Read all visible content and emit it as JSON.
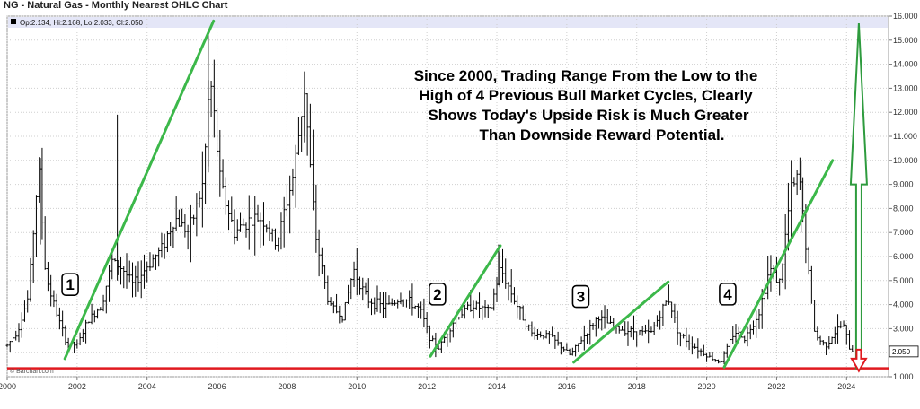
{
  "title": "NG - Natural Gas - Monthly Nearest OHLC Chart",
  "ohlc_readout": "Op:2.134, Hi:2.168, Lo:2.033, Cl:2.050",
  "watermark": "© Barchart.com",
  "last_price_label": "2.050",
  "annotation_lines": [
    "Since 2000, Trading Range From the Low to the",
    "High of 4 Previous Bull Market Cycles, Clearly",
    "Shows Today's Upside Risk is Much Greater",
    "Than Downside Reward Potential."
  ],
  "colors": {
    "trend": "#3cb84a",
    "support": "#e0191f",
    "bar": "#000000",
    "header_band": "#e4e6f7",
    "arrow_up": "#2e9b3e",
    "arrow_down": "#e0191f"
  },
  "chart_data": {
    "type": "ohlc",
    "title": "NG - Natural Gas - Monthly Nearest OHLC Chart",
    "frequency": "monthly",
    "x_ticks": [
      "2000",
      "2002",
      "2004",
      "2006",
      "2008",
      "2010",
      "2012",
      "2014",
      "2016",
      "2018",
      "2020",
      "2022",
      "2024"
    ],
    "y_ticks": [
      "1.000",
      "2.000",
      "3.000",
      "4.000",
      "5.000",
      "6.000",
      "7.000",
      "8.000",
      "9.000",
      "10.000",
      "11.000",
      "12.000",
      "13.000",
      "14.000",
      "15.000",
      "16.000"
    ],
    "xlim": [
      2000.0,
      2025.2
    ],
    "ylim": [
      1.0,
      16.0
    ],
    "grid": true,
    "support_line": {
      "value": 1.35
    },
    "last": {
      "open": 2.134,
      "high": 2.168,
      "low": 2.033,
      "close": 2.05
    },
    "series": [
      {
        "t": 2000.0,
        "v": 2.3
      },
      {
        "t": 2000.3,
        "v": 2.9
      },
      {
        "t": 2000.6,
        "v": 4.3
      },
      {
        "t": 2000.9,
        "v": 9.8
      },
      {
        "t": 2001.1,
        "v": 5.2
      },
      {
        "t": 2001.4,
        "v": 3.7
      },
      {
        "t": 2001.7,
        "v": 2.4
      },
      {
        "t": 2002.0,
        "v": 2.3
      },
      {
        "t": 2002.3,
        "v": 3.3
      },
      {
        "t": 2002.7,
        "v": 4.0
      },
      {
        "t": 2003.0,
        "v": 5.8
      },
      {
        "t": 2003.3,
        "v": 5.5
      },
      {
        "t": 2003.6,
        "v": 4.8
      },
      {
        "t": 2004.0,
        "v": 5.6
      },
      {
        "t": 2004.4,
        "v": 6.3
      },
      {
        "t": 2004.8,
        "v": 7.6
      },
      {
        "t": 2005.2,
        "v": 7.0
      },
      {
        "t": 2005.6,
        "v": 9.0
      },
      {
        "t": 2005.8,
        "v": 13.5
      },
      {
        "t": 2006.1,
        "v": 9.0
      },
      {
        "t": 2006.5,
        "v": 7.0
      },
      {
        "t": 2006.9,
        "v": 7.5
      },
      {
        "t": 2007.3,
        "v": 7.6
      },
      {
        "t": 2007.7,
        "v": 6.5
      },
      {
        "t": 2008.2,
        "v": 9.5
      },
      {
        "t": 2008.5,
        "v": 13.0
      },
      {
        "t": 2008.8,
        "v": 7.0
      },
      {
        "t": 2009.2,
        "v": 4.0
      },
      {
        "t": 2009.6,
        "v": 3.5
      },
      {
        "t": 2009.9,
        "v": 5.5
      },
      {
        "t": 2010.3,
        "v": 4.2
      },
      {
        "t": 2010.8,
        "v": 3.9
      },
      {
        "t": 2011.3,
        "v": 4.3
      },
      {
        "t": 2011.8,
        "v": 3.8
      },
      {
        "t": 2012.1,
        "v": 2.6
      },
      {
        "t": 2012.3,
        "v": 2.1
      },
      {
        "t": 2012.8,
        "v": 3.4
      },
      {
        "t": 2013.3,
        "v": 4.0
      },
      {
        "t": 2013.8,
        "v": 3.7
      },
      {
        "t": 2014.1,
        "v": 5.5
      },
      {
        "t": 2014.6,
        "v": 3.9
      },
      {
        "t": 2015.0,
        "v": 2.8
      },
      {
        "t": 2015.5,
        "v": 2.7
      },
      {
        "t": 2016.1,
        "v": 1.9
      },
      {
        "t": 2016.6,
        "v": 2.9
      },
      {
        "t": 2016.9,
        "v": 3.5
      },
      {
        "t": 2017.4,
        "v": 3.0
      },
      {
        "t": 2017.9,
        "v": 2.9
      },
      {
        "t": 2018.4,
        "v": 2.8
      },
      {
        "t": 2018.9,
        "v": 4.3
      },
      {
        "t": 2019.2,
        "v": 2.8
      },
      {
        "t": 2019.6,
        "v": 2.3
      },
      {
        "t": 2020.1,
        "v": 1.8
      },
      {
        "t": 2020.4,
        "v": 1.6
      },
      {
        "t": 2020.8,
        "v": 2.9
      },
      {
        "t": 2021.1,
        "v": 2.6
      },
      {
        "t": 2021.5,
        "v": 3.7
      },
      {
        "t": 2021.8,
        "v": 5.5
      },
      {
        "t": 2022.1,
        "v": 4.9
      },
      {
        "t": 2022.4,
        "v": 8.7
      },
      {
        "t": 2022.65,
        "v": 9.3
      },
      {
        "t": 2022.9,
        "v": 5.5
      },
      {
        "t": 2023.1,
        "v": 2.7
      },
      {
        "t": 2023.4,
        "v": 2.3
      },
      {
        "t": 2023.7,
        "v": 2.9
      },
      {
        "t": 2023.9,
        "v": 3.2
      },
      {
        "t": 2024.1,
        "v": 2.1
      },
      {
        "t": 2024.2,
        "v": 2.05
      }
    ],
    "spikes": [
      {
        "t": 2000.95,
        "high": 10.1,
        "low": 6.5
      },
      {
        "t": 2003.15,
        "high": 11.9,
        "low": 5.0
      },
      {
        "t": 2005.75,
        "high": 15.3,
        "low": 9.5
      },
      {
        "t": 2008.5,
        "high": 13.7,
        "low": 11.0
      },
      {
        "t": 2014.05,
        "high": 6.5,
        "low": 4.8
      },
      {
        "t": 2022.7,
        "high": 10.0,
        "low": 7.0
      }
    ],
    "trend_lines": [
      {
        "from": [
          2001.65,
          1.75
        ],
        "to": [
          2005.9,
          15.8
        ]
      },
      {
        "from": [
          2012.1,
          1.85
        ],
        "to": [
          2014.1,
          6.45
        ]
      },
      {
        "from": [
          2016.2,
          1.6
        ],
        "to": [
          2018.9,
          4.95
        ]
      },
      {
        "from": [
          2020.5,
          1.4
        ],
        "to": [
          2023.6,
          10.0
        ]
      }
    ],
    "cycle_labels": [
      {
        "text": "1",
        "t": 2001.8,
        "v": 4.8
      },
      {
        "text": "2",
        "t": 2012.3,
        "v": 4.4
      },
      {
        "text": "3",
        "t": 2016.4,
        "v": 4.3
      },
      {
        "text": "4",
        "t": 2020.6,
        "v": 4.4
      }
    ],
    "upside_arrow": {
      "t": 2024.35,
      "from": 1.35,
      "to": 15.7
    },
    "downside_arrow": {
      "t": 2024.35,
      "from": 2.05,
      "to": 1.35
    }
  }
}
